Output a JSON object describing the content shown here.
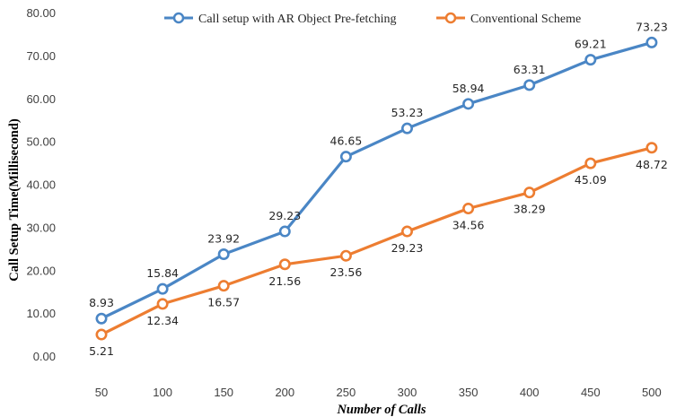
{
  "chart_data": {
    "type": "line",
    "xlabel": "Number of Calls",
    "ylabel": "Call Setup Time(Millisecond)",
    "ylim": [
      0,
      80
    ],
    "y_ticks": [
      "0.00",
      "10.00",
      "20.00",
      "30.00",
      "40.00",
      "50.00",
      "60.00",
      "70.00",
      "80.00"
    ],
    "categories": [
      "50",
      "100",
      "150",
      "200",
      "250",
      "300",
      "350",
      "400",
      "450",
      "500"
    ],
    "grid": false,
    "legend_position": "top",
    "series": [
      {
        "name": "Call setup with AR Object Pre-fetching",
        "color": "#4a86c5",
        "values": [
          8.93,
          15.84,
          23.92,
          29.23,
          46.65,
          53.23,
          58.94,
          63.31,
          69.21,
          73.23
        ],
        "labels": [
          "8.93",
          "15.84",
          "23.92",
          "29.23",
          "46.65",
          "53.23",
          "58.94",
          "63.31",
          "69.21",
          "73.23"
        ],
        "label_position": "above"
      },
      {
        "name": "Conventional Scheme",
        "color": "#ed7d31",
        "values": [
          5.21,
          12.34,
          16.57,
          21.56,
          23.56,
          29.23,
          34.56,
          38.29,
          45.09,
          48.72
        ],
        "labels": [
          "5.21",
          "12.34",
          "16.57",
          "21.56",
          "23.56",
          "29.23",
          "34.56",
          "38.29",
          "45.09",
          "48.72"
        ],
        "label_position": "below"
      }
    ]
  }
}
